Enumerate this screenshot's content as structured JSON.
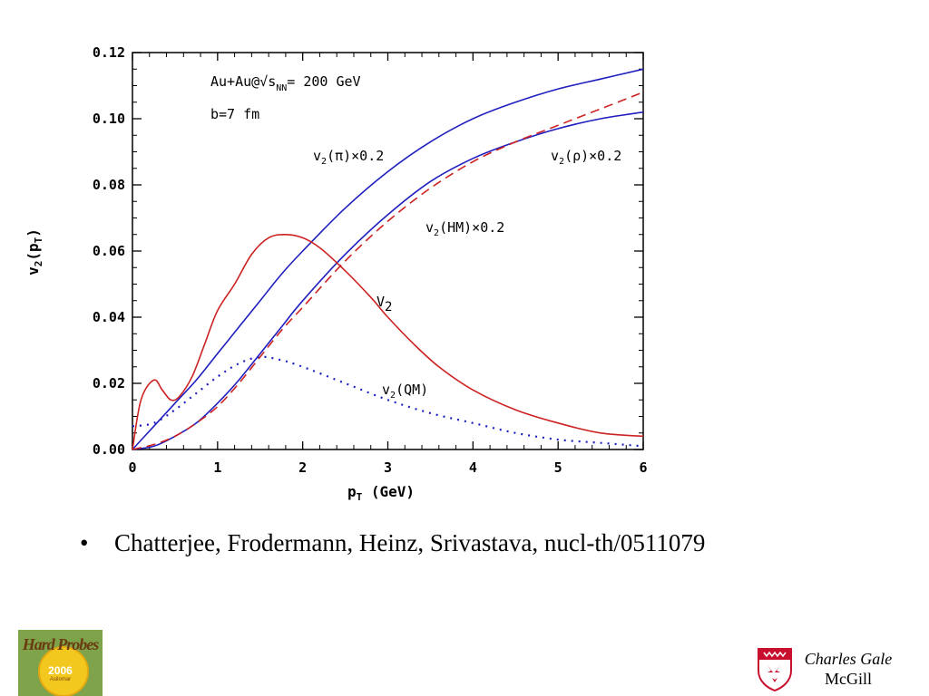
{
  "chart_data": {
    "type": "line",
    "xlabel": "p_T (GeV)",
    "ylabel": "v_2(p_T)",
    "xlim": [
      0,
      6
    ],
    "ylim": [
      0,
      0.12
    ],
    "x_ticks": [
      "0",
      "1",
      "2",
      "3",
      "4",
      "5",
      "6"
    ],
    "y_ticks": [
      "0.00",
      "0.02",
      "0.04",
      "0.06",
      "0.08",
      "0.10",
      "0.12"
    ],
    "annotations": {
      "system": "Au+Au@√s_NN= 200 GeV",
      "impact": "b=7 fm"
    },
    "series": [
      {
        "name": "v_2(π)×0.2",
        "color": "#1f1fbf",
        "style": "solid",
        "x": [
          0,
          0.25,
          0.5,
          0.75,
          1.0,
          1.25,
          1.5,
          1.75,
          2.0,
          2.5,
          3.0,
          3.5,
          4.0,
          4.5,
          5.0,
          5.5,
          6.0
        ],
        "y": [
          0.0,
          0.007,
          0.014,
          0.021,
          0.029,
          0.037,
          0.045,
          0.053,
          0.06,
          0.073,
          0.084,
          0.093,
          0.1,
          0.105,
          0.109,
          0.112,
          0.115
        ]
      },
      {
        "name": "v_2(ρ)×0.2",
        "color": "#1f1fbf",
        "style": "solid",
        "x": [
          0,
          0.25,
          0.5,
          0.75,
          1.0,
          1.25,
          1.5,
          1.75,
          2.0,
          2.5,
          3.0,
          3.5,
          4.0,
          4.5,
          5.0,
          5.5,
          6.0
        ],
        "y": [
          0.0,
          0.001,
          0.004,
          0.008,
          0.014,
          0.021,
          0.029,
          0.037,
          0.045,
          0.059,
          0.071,
          0.081,
          0.088,
          0.093,
          0.097,
          0.1,
          0.102
        ]
      },
      {
        "name": "v_2(HM)×0.2",
        "color": "#cc2222",
        "style": "dashed",
        "x": [
          0,
          0.25,
          0.5,
          0.75,
          1.0,
          1.25,
          1.5,
          1.75,
          2.0,
          2.5,
          3.0,
          3.5,
          4.0,
          4.5,
          5.0,
          5.5,
          6.0
        ],
        "y": [
          0.0,
          0.0015,
          0.004,
          0.008,
          0.013,
          0.02,
          0.028,
          0.036,
          0.043,
          0.057,
          0.069,
          0.079,
          0.087,
          0.093,
          0.098,
          0.103,
          0.108
        ]
      },
      {
        "name": "V_2",
        "color": "#cc2222",
        "style": "solid",
        "x": [
          0,
          0.1,
          0.25,
          0.35,
          0.45,
          0.55,
          0.7,
          0.85,
          1.0,
          1.2,
          1.4,
          1.6,
          1.8,
          2.0,
          2.2,
          2.5,
          2.8,
          3.0,
          3.3,
          3.6,
          4.0,
          4.5,
          5.0,
          5.5,
          6.0
        ],
        "y": [
          0.0,
          0.015,
          0.021,
          0.018,
          0.015,
          0.016,
          0.022,
          0.032,
          0.042,
          0.05,
          0.059,
          0.064,
          0.065,
          0.064,
          0.061,
          0.054,
          0.046,
          0.04,
          0.032,
          0.025,
          0.018,
          0.012,
          0.008,
          0.005,
          0.004
        ]
      },
      {
        "name": "v_2(QM)",
        "color": "#1f1fbf",
        "style": "dotted",
        "x": [
          0,
          0.25,
          0.5,
          0.75,
          1.0,
          1.25,
          1.5,
          1.75,
          2.0,
          2.5,
          3.0,
          3.5,
          4.0,
          4.5,
          5.0,
          5.5,
          6.0
        ],
        "y": [
          0.007,
          0.008,
          0.012,
          0.017,
          0.022,
          0.026,
          0.028,
          0.027,
          0.025,
          0.02,
          0.015,
          0.011,
          0.008,
          0.005,
          0.003,
          0.002,
          0.001
        ]
      }
    ]
  },
  "text": {
    "bullet": "•",
    "citation": "Chatterjee, Frodermann, Heinz, Srivastava, nucl-th/0511079",
    "author_name": "Charles Gale",
    "author_affil": "McGill"
  },
  "logo": {
    "title": "Hard Probes",
    "year": "2006",
    "sub": "Asilomar"
  },
  "colors": {
    "blue": "#1f1fbf",
    "red": "#cc2222",
    "logo_green": "#7ea34a",
    "logo_gold": "#f2c81f",
    "shield_red": "#c8102e"
  }
}
